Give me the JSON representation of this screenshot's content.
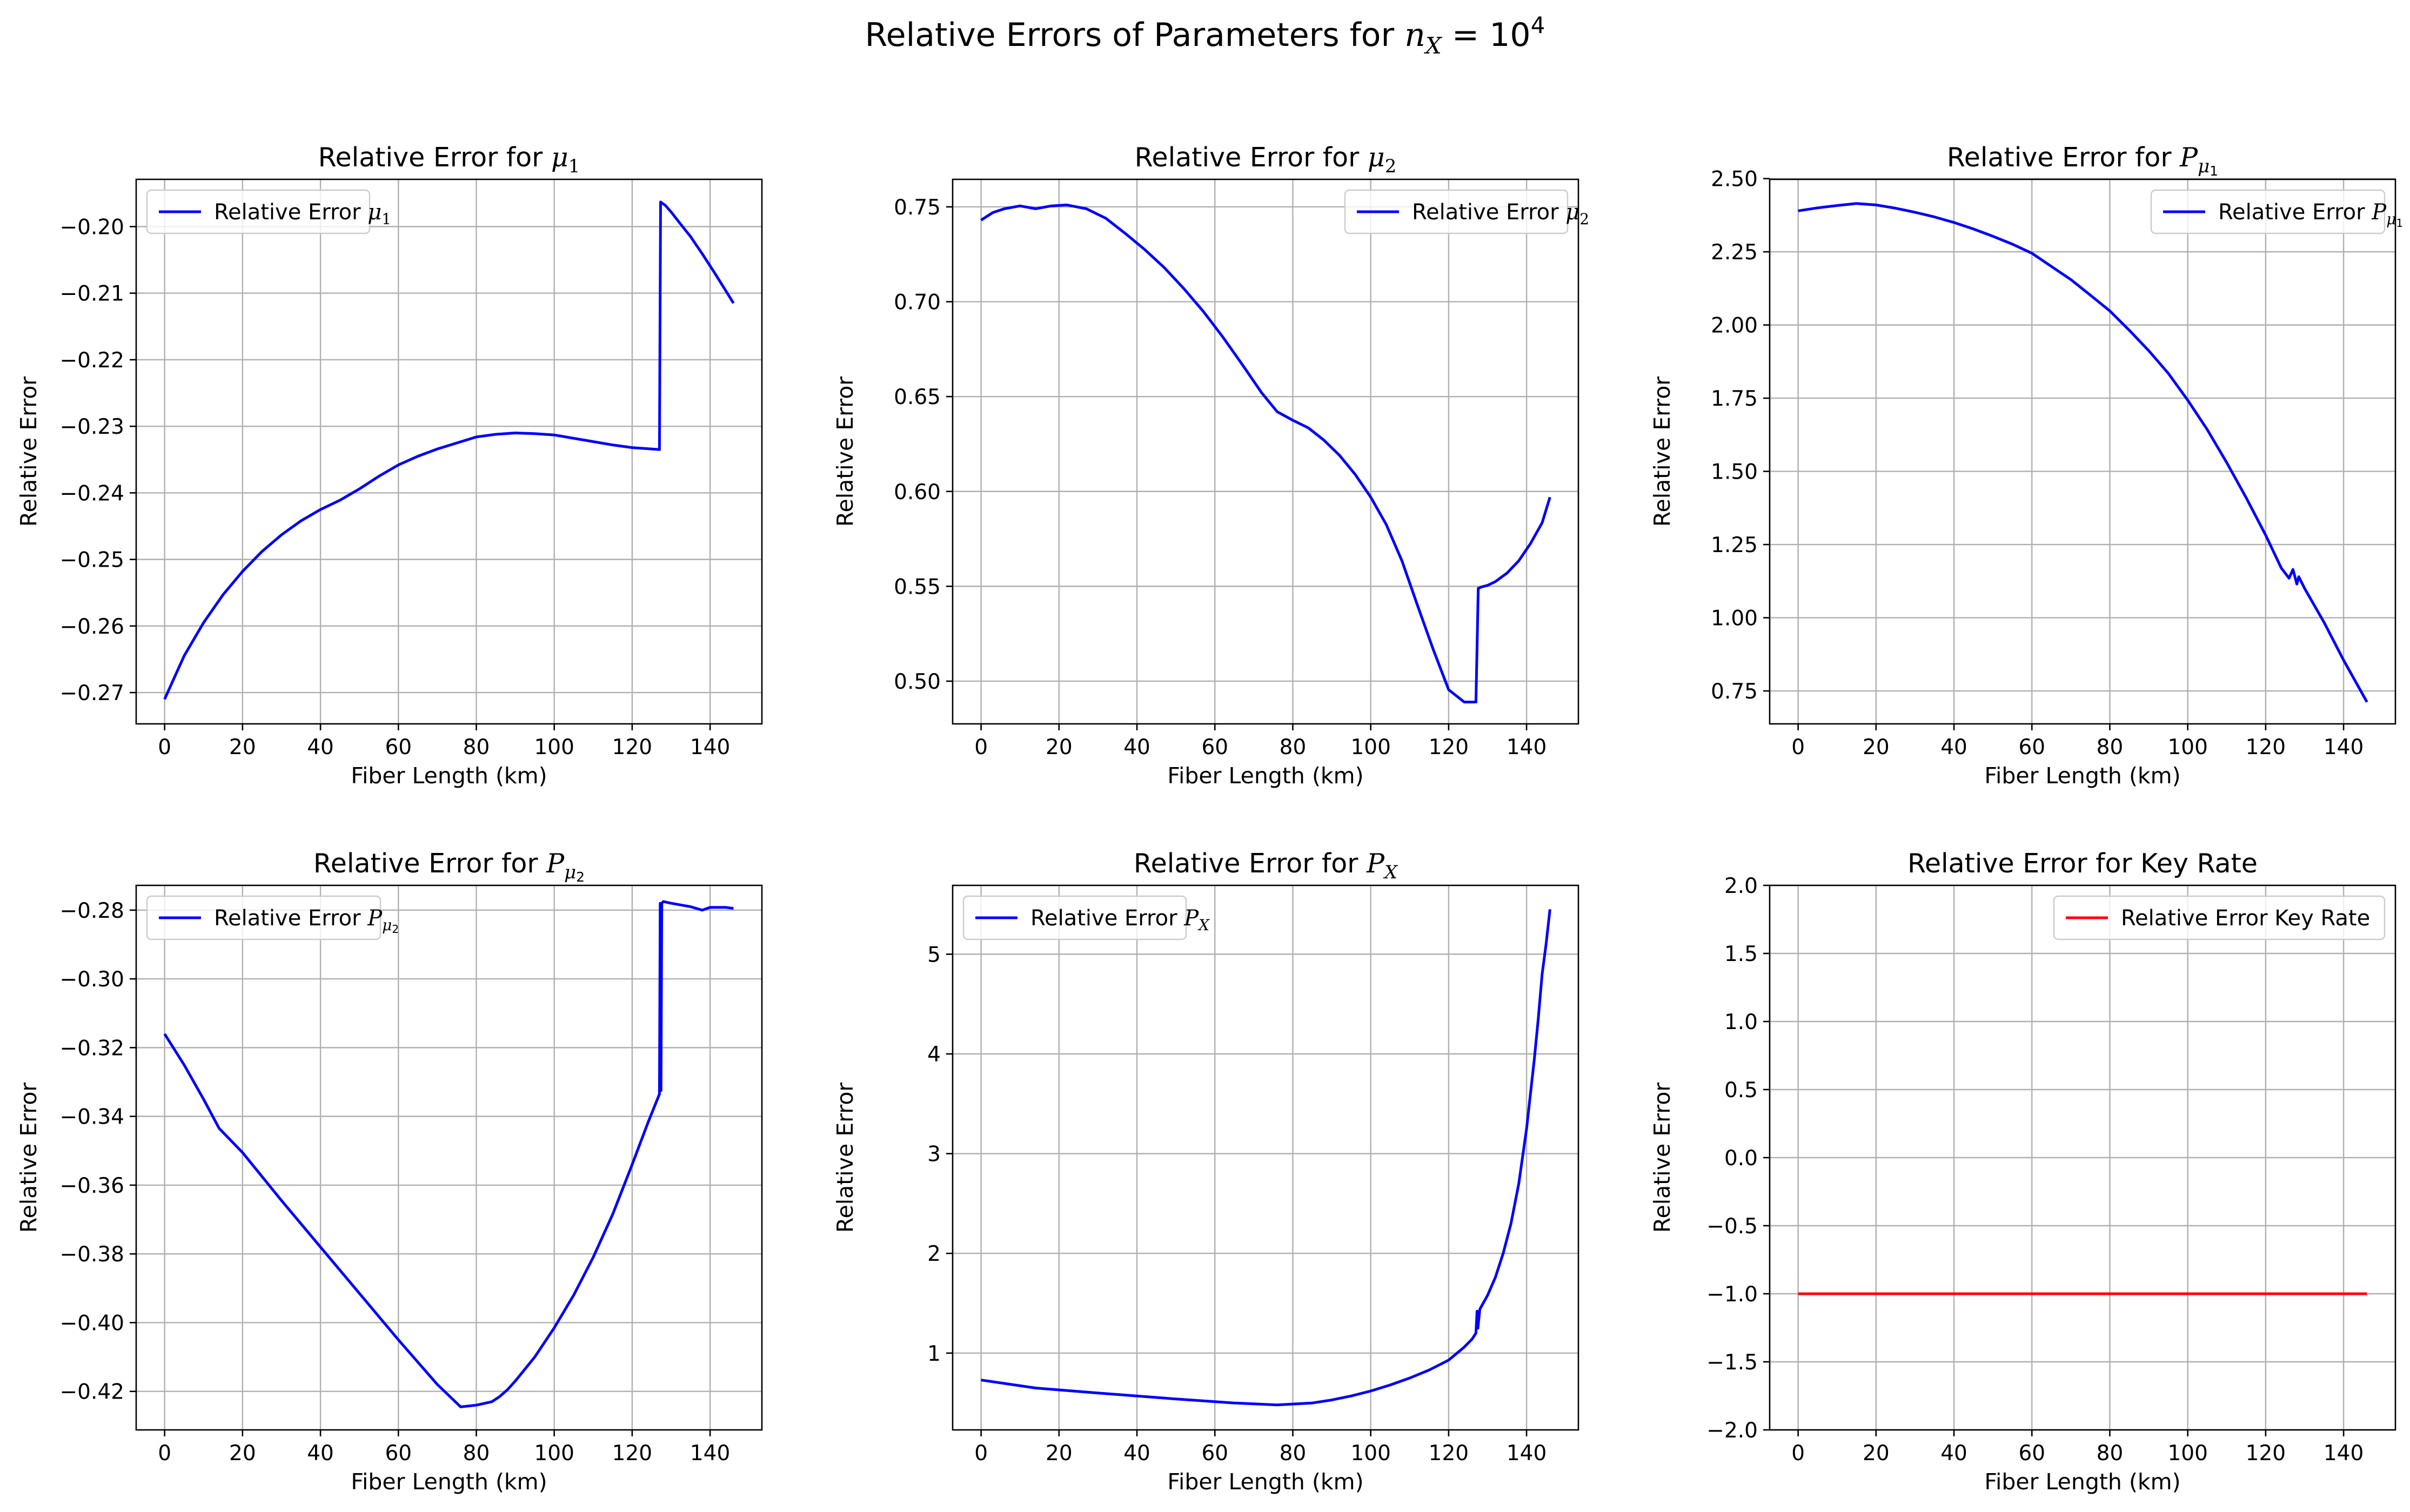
{
  "figure": {
    "suptitle": "Relative Errors of Parameters for nₓ = 10⁴",
    "suptitle_parts": {
      "lead": "Relative Errors of Parameters for ",
      "var": "n",
      "sub": "X",
      "mid": " = 10",
      "sup": "4"
    }
  },
  "colors": {
    "blue": "#0000ff",
    "red": "#ff0000",
    "grid": "#b0b0b0"
  },
  "chart_data": [
    {
      "id": "mu1",
      "type": "line",
      "grid": true,
      "color": "#0000ff",
      "title": "Relative Error for μ₁",
      "title_parts": {
        "lead": "Relative Error for ",
        "var": "μ",
        "sub": "1",
        "subsub": ""
      },
      "xlabel": "Fiber Length (km)",
      "ylabel": "Relative Error",
      "xlim": [
        -7.3,
        153.3
      ],
      "ylim": [
        -0.2747,
        -0.1929
      ],
      "xticks": [
        0,
        20,
        40,
        60,
        80,
        100,
        120,
        140
      ],
      "yticks": [
        -0.27,
        -0.26,
        -0.25,
        -0.24,
        -0.23,
        -0.22,
        -0.21,
        -0.2
      ],
      "ytick_labels": [
        "−0.27",
        "−0.26",
        "−0.25",
        "−0.24",
        "−0.23",
        "−0.22",
        "−0.21",
        "−0.20"
      ],
      "legend": {
        "loc": "upper left",
        "label": "Relative Error μ₁",
        "label_parts": {
          "lead": "Relative Error ",
          "var": "μ",
          "sub": "1",
          "subsub": ""
        }
      },
      "series": [
        {
          "name": "Relative Error μ₁",
          "x": [
            0,
            5,
            10,
            15,
            20,
            25,
            30,
            35,
            40,
            45,
            50,
            55,
            60,
            65,
            70,
            75,
            80,
            85,
            90,
            95,
            100,
            105,
            110,
            115,
            120,
            125,
            127,
            127,
            127.3,
            128.5,
            130,
            132,
            135,
            138,
            141,
            144,
            146
          ],
          "y": [
            -0.271,
            -0.2645,
            -0.2595,
            -0.2553,
            -0.2518,
            -0.2488,
            -0.2463,
            -0.2442,
            -0.2425,
            -0.2411,
            -0.2394,
            -0.2375,
            -0.2358,
            -0.2345,
            -0.2334,
            -0.2325,
            -0.2316,
            -0.2312,
            -0.231,
            -0.2311,
            -0.2313,
            -0.2318,
            -0.2323,
            -0.2328,
            -0.2332,
            -0.2334,
            -0.2335,
            -0.2335,
            -0.1963,
            -0.1968,
            -0.1978,
            -0.1993,
            -0.2015,
            -0.2041,
            -0.2068,
            -0.2096,
            -0.2115
          ]
        }
      ]
    },
    {
      "id": "mu2",
      "type": "line",
      "grid": true,
      "color": "#0000ff",
      "title": "Relative Error for μ₂",
      "title_parts": {
        "lead": "Relative Error for ",
        "var": "μ",
        "sub": "2",
        "subsub": ""
      },
      "xlabel": "Fiber Length (km)",
      "ylabel": "Relative Error",
      "xlim": [
        -7.3,
        153.3
      ],
      "ylim": [
        0.4775,
        0.7645
      ],
      "xticks": [
        0,
        20,
        40,
        60,
        80,
        100,
        120,
        140
      ],
      "yticks": [
        0.5,
        0.55,
        0.6,
        0.65,
        0.7,
        0.75
      ],
      "ytick_labels": [
        "0.50",
        "0.55",
        "0.60",
        "0.65",
        "0.70",
        "0.75"
      ],
      "legend": {
        "loc": "upper right",
        "label": "Relative Error μ₂",
        "label_parts": {
          "lead": "Relative Error ",
          "var": "μ",
          "sub": "2",
          "subsub": ""
        }
      },
      "series": [
        {
          "name": "Relative Error μ₂",
          "x": [
            0,
            3,
            6,
            10,
            14,
            18,
            22,
            27,
            32,
            37,
            42,
            47,
            52,
            57,
            62,
            67,
            72,
            76,
            80,
            84,
            88,
            92,
            96,
            100,
            104,
            108,
            112,
            116,
            120,
            124,
            127,
            127.6,
            127.8,
            128.2,
            130,
            132,
            135,
            138,
            141,
            144,
            146
          ],
          "y": [
            0.743,
            0.747,
            0.749,
            0.7505,
            0.749,
            0.7505,
            0.751,
            0.749,
            0.744,
            0.736,
            0.7275,
            0.718,
            0.707,
            0.695,
            0.6815,
            0.667,
            0.652,
            0.642,
            0.6375,
            0.6335,
            0.627,
            0.619,
            0.609,
            0.597,
            0.5825,
            0.5635,
            0.54,
            0.517,
            0.4955,
            0.489,
            0.489,
            0.549,
            0.549,
            0.5495,
            0.5505,
            0.5525,
            0.557,
            0.5635,
            0.5725,
            0.5835,
            0.597
          ]
        }
      ]
    },
    {
      "id": "pmu1",
      "type": "line",
      "grid": true,
      "color": "#0000ff",
      "title": "Relative Error for Pμ₁",
      "title_parts": {
        "lead": "Relative Error for ",
        "var": "P",
        "sub": "μ",
        "subsub": "1"
      },
      "xlabel": "Fiber Length (km)",
      "ylabel": "Relative Error",
      "xlim": [
        -7.3,
        153.3
      ],
      "ylim": [
        0.6375,
        2.4975
      ],
      "xticks": [
        0,
        20,
        40,
        60,
        80,
        100,
        120,
        140
      ],
      "yticks": [
        0.75,
        1.0,
        1.25,
        1.5,
        1.75,
        2.0,
        2.25,
        2.5
      ],
      "ytick_labels": [
        "0.75",
        "1.00",
        "1.25",
        "1.50",
        "1.75",
        "2.00",
        "2.25",
        "2.50"
      ],
      "legend": {
        "loc": "upper right",
        "label": "Relative Error Pμ₁",
        "label_parts": {
          "lead": "Relative Error ",
          "var": "P",
          "sub": "μ",
          "subsub": "1"
        }
      },
      "series": [
        {
          "name": "Relative Error Pμ₁",
          "x": [
            0,
            5,
            10,
            15,
            20,
            25,
            30,
            35,
            40,
            45,
            50,
            55,
            60,
            65,
            70,
            75,
            80,
            85,
            90,
            95,
            100,
            105,
            110,
            115,
            120,
            124,
            126,
            127,
            128,
            128.5,
            130,
            135,
            140,
            146
          ],
          "y": [
            2.39,
            2.4,
            2.408,
            2.415,
            2.41,
            2.399,
            2.385,
            2.369,
            2.35,
            2.328,
            2.303,
            2.276,
            2.245,
            2.2,
            2.155,
            2.102,
            2.048,
            1.982,
            1.912,
            1.835,
            1.743,
            1.643,
            1.53,
            1.41,
            1.282,
            1.17,
            1.135,
            1.165,
            1.115,
            1.14,
            1.1,
            0.984,
            0.855,
            0.712
          ]
        }
      ]
    },
    {
      "id": "pmu2",
      "type": "line",
      "grid": true,
      "color": "#0000ff",
      "title": "Relative Error for Pμ₂",
      "title_parts": {
        "lead": "Relative Error for ",
        "var": "P",
        "sub": "μ",
        "subsub": "2"
      },
      "xlabel": "Fiber Length (km)",
      "ylabel": "Relative Error",
      "xlim": [
        -7.3,
        153.3
      ],
      "ylim": [
        -0.4312,
        -0.2728
      ],
      "xticks": [
        0,
        20,
        40,
        60,
        80,
        100,
        120,
        140
      ],
      "yticks": [
        -0.42,
        -0.4,
        -0.38,
        -0.36,
        -0.34,
        -0.32,
        -0.3,
        -0.28
      ],
      "ytick_labels": [
        "−0.42",
        "−0.40",
        "−0.38",
        "−0.36",
        "−0.34",
        "−0.32",
        "−0.30",
        "−0.28"
      ],
      "legend": {
        "loc": "upper left",
        "label": "Relative Error Pμ₂",
        "label_parts": {
          "lead": "Relative Error ",
          "var": "P",
          "sub": "μ",
          "subsub": "2"
        }
      },
      "series": [
        {
          "name": "Relative Error Pμ₂",
          "x": [
            0,
            5,
            10,
            14,
            20,
            30,
            40,
            50,
            60,
            70,
            76,
            80,
            84,
            86,
            88,
            90,
            95,
            100,
            105,
            110,
            115,
            120,
            124,
            127,
            127.2,
            127.4,
            127.6,
            128,
            130,
            135,
            138,
            140,
            144,
            146
          ],
          "y": [
            -0.316,
            -0.325,
            -0.335,
            -0.3435,
            -0.3505,
            -0.3645,
            -0.378,
            -0.3915,
            -0.405,
            -0.418,
            -0.4245,
            -0.424,
            -0.423,
            -0.4215,
            -0.4195,
            -0.417,
            -0.41,
            -0.4015,
            -0.392,
            -0.381,
            -0.3685,
            -0.354,
            -0.342,
            -0.3335,
            -0.278,
            -0.3325,
            -0.278,
            -0.2775,
            -0.278,
            -0.279,
            -0.28,
            -0.2792,
            -0.2792,
            -0.2795
          ]
        }
      ]
    },
    {
      "id": "px",
      "type": "line",
      "grid": true,
      "color": "#0000ff",
      "title": "Relative Error for Pₓ",
      "title_parts": {
        "lead": "Relative Error for ",
        "var": "P",
        "sub": "X",
        "subsub": ""
      },
      "xlabel": "Fiber Length (km)",
      "ylabel": "Relative Error",
      "xlim": [
        -7.3,
        153.3
      ],
      "ylim": [
        0.23,
        5.69
      ],
      "xticks": [
        0,
        20,
        40,
        60,
        80,
        100,
        120,
        140
      ],
      "yticks": [
        1,
        2,
        3,
        4,
        5
      ],
      "ytick_labels": [
        "1",
        "2",
        "3",
        "4",
        "5"
      ],
      "legend": {
        "loc": "upper left",
        "label": "Relative Error Pₓ",
        "label_parts": {
          "lead": "Relative Error ",
          "var": "P",
          "sub": "X",
          "subsub": ""
        }
      },
      "series": [
        {
          "name": "Relative Error Pₓ",
          "x": [
            0,
            14,
            30,
            50,
            65,
            76,
            85,
            90,
            95,
            100,
            105,
            110,
            115,
            120,
            124,
            126,
            127,
            127.3,
            127.5,
            128,
            130,
            132,
            134,
            136,
            138,
            140,
            141,
            142,
            143,
            144,
            145,
            146
          ],
          "y": [
            0.73,
            0.65,
            0.6,
            0.54,
            0.5,
            0.48,
            0.5,
            0.53,
            0.57,
            0.62,
            0.68,
            0.75,
            0.83,
            0.93,
            1.06,
            1.14,
            1.2,
            1.42,
            1.25,
            1.44,
            1.58,
            1.76,
            2.0,
            2.3,
            2.7,
            3.25,
            3.6,
            3.95,
            4.35,
            4.8,
            5.1,
            5.45
          ]
        }
      ]
    },
    {
      "id": "keyrate",
      "type": "line",
      "grid": true,
      "color": "#ff0000",
      "title": "Relative Error for Key Rate",
      "title_parts": {
        "lead": "Relative Error for Key Rate",
        "var": "",
        "sub": "",
        "subsub": ""
      },
      "xlabel": "Fiber Length (km)",
      "ylabel": "Relative Error",
      "xlim": [
        -7.3,
        153.3
      ],
      "ylim": [
        -2.0,
        2.0
      ],
      "xticks": [
        0,
        20,
        40,
        60,
        80,
        100,
        120,
        140
      ],
      "yticks": [
        -2.0,
        -1.5,
        -1.0,
        -0.5,
        0.0,
        0.5,
        1.0,
        1.5,
        2.0
      ],
      "ytick_labels": [
        "−2.0",
        "−1.5",
        "−1.0",
        "−0.5",
        "0.0",
        "0.5",
        "1.0",
        "1.5",
        "2.0"
      ],
      "legend": {
        "loc": "upper right",
        "label": "Relative Error Key Rate",
        "label_parts": {
          "lead": "Relative Error Key Rate",
          "var": "",
          "sub": "",
          "subsub": ""
        }
      },
      "series": [
        {
          "name": "Relative Error Key Rate",
          "x": [
            0,
            146
          ],
          "y": [
            -1.0,
            -1.0
          ]
        }
      ]
    }
  ]
}
